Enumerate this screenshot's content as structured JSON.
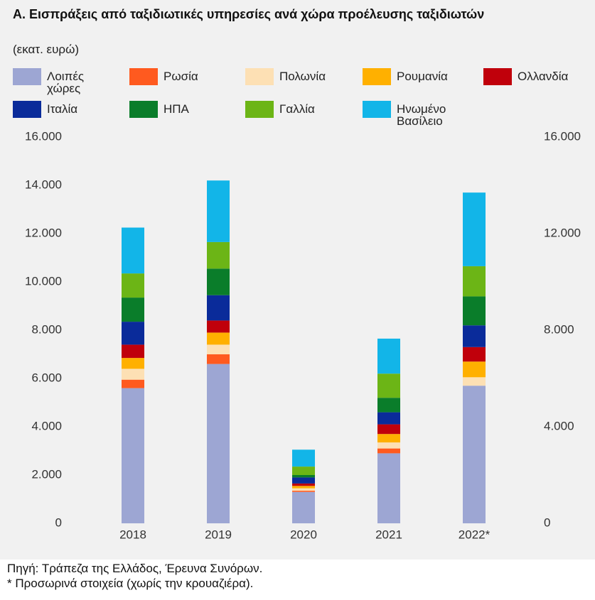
{
  "chart_data": {
    "type": "stacked-bar",
    "title": "Α. Εισπράξεις από ταξιδιωτικές υπηρεσίες ανά χώρα προέλευσης ταξιδιωτών",
    "subtitle": "(εκατ. ευρώ)",
    "categories": [
      "2018",
      "2019",
      "2020",
      "2021",
      "2022*"
    ],
    "series": [
      {
        "name": "Λοιπές χώρες",
        "color": "#9da6d3",
        "values": [
          5600,
          6600,
          1300,
          2900,
          5700
        ]
      },
      {
        "name": "Ρωσία",
        "color": "#ff5a1f",
        "values": [
          350,
          400,
          50,
          200,
          0
        ]
      },
      {
        "name": "Πολωνία",
        "color": "#fde0b4",
        "values": [
          450,
          400,
          100,
          250,
          350
        ]
      },
      {
        "name": "Ρουμανία",
        "color": "#ffb000",
        "values": [
          450,
          500,
          100,
          350,
          650
        ]
      },
      {
        "name": "Ολλανδία",
        "color": "#c0000b",
        "values": [
          550,
          500,
          100,
          400,
          600
        ]
      },
      {
        "name": "Ιταλία",
        "color": "#0a2b9a",
        "values": [
          950,
          1050,
          250,
          500,
          900
        ]
      },
      {
        "name": "ΗΠΑ",
        "color": "#0a7d2a",
        "values": [
          1000,
          1100,
          100,
          600,
          1200
        ]
      },
      {
        "name": "Γαλλία",
        "color": "#6cb516",
        "values": [
          1000,
          1100,
          350,
          1000,
          1250
        ]
      },
      {
        "name": "Ηνωμένο Βασίλειο",
        "color": "#12b5e8",
        "values": [
          1900,
          2550,
          700,
          1450,
          3050
        ]
      }
    ],
    "ylim": [
      0,
      16000
    ],
    "yticks": [
      0,
      {
        "value": 2000,
        "label": "2.000"
      },
      {
        "value": 4000,
        "label": "4.000"
      },
      {
        "value": 6000,
        "label": "6.000"
      },
      {
        "value": 8000,
        "label": "8.000"
      },
      {
        "value": 10000,
        "label": "10.000"
      },
      {
        "value": 12000,
        "label": "12.000"
      },
      {
        "value": 14000,
        "label": "14.000"
      },
      {
        "value": 16000,
        "label": "16.000"
      }
    ],
    "y2lim": [
      0,
      16000
    ],
    "y2ticks": [
      0,
      {
        "value": 4000,
        "label": "4.000"
      },
      {
        "value": 8000,
        "label": "8.000"
      },
      {
        "value": 12000,
        "label": "12.000"
      },
      {
        "value": 16000,
        "label": "16.000"
      }
    ],
    "grid": false,
    "source": "Πηγή: Τράπεζα της Ελλάδος, Έρευνα Συνόρων.",
    "note": "* Προσωρινά στοιχεία (χωρίς την κρουαζιέρα)."
  }
}
